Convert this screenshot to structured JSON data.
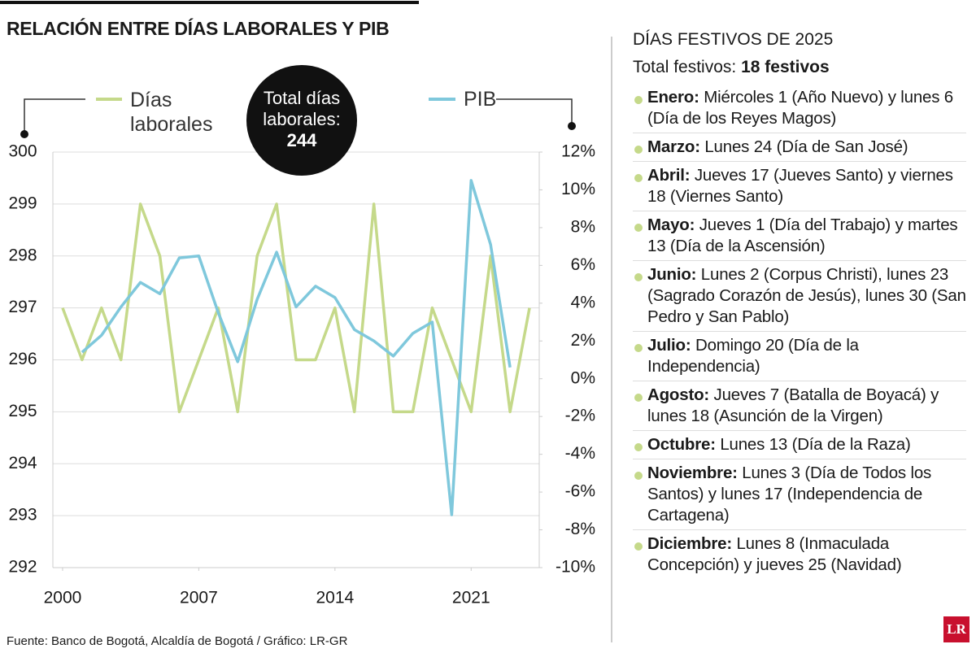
{
  "chart_data": {
    "type": "line",
    "title": "RELACIÓN ENTRE DÍAS LABORALES Y PIB",
    "annotation": {
      "label": "Total días laborales:",
      "value": "244"
    },
    "x": [
      2000,
      2001,
      2002,
      2003,
      2004,
      2005,
      2006,
      2007,
      2008,
      2009,
      2010,
      2011,
      2012,
      2013,
      2014,
      2015,
      2016,
      2017,
      2018,
      2019,
      2020,
      2021,
      2022,
      2023,
      2024
    ],
    "xlim": [
      1999.5,
      2024.5
    ],
    "xticks": [
      2000,
      2007,
      2014,
      2021
    ],
    "series": [
      {
        "name": "Días laborales",
        "color": "#c5d98a",
        "axis": "y",
        "values": [
          297,
          296,
          297,
          296,
          299,
          298,
          295,
          296,
          297,
          295,
          298,
          299,
          296,
          296,
          297,
          295,
          299,
          295,
          295,
          297,
          296,
          295,
          298,
          295,
          297
        ]
      },
      {
        "name": "PIB",
        "color": "#7fc8dc",
        "axis": "y2",
        "values": [
          null,
          1.4,
          2.3,
          3.8,
          5.1,
          4.5,
          6.4,
          6.5,
          3.5,
          0.9,
          4.2,
          6.7,
          3.8,
          4.9,
          4.3,
          2.6,
          2.0,
          1.2,
          2.4,
          3.0,
          -7.2,
          10.5,
          7.1,
          0.6,
          null
        ]
      }
    ],
    "ylim": [
      292,
      300
    ],
    "yticks": [
      292,
      293,
      294,
      295,
      296,
      297,
      298,
      299,
      300
    ],
    "y2lim": [
      -10,
      12
    ],
    "y2ticks": [
      {
        "value": -10,
        "label": "-10%"
      },
      {
        "value": -8,
        "label": "-8%"
      },
      {
        "value": -6,
        "label": "-6%"
      },
      {
        "value": -4,
        "label": "-4%"
      },
      {
        "value": -2,
        "label": "-2%"
      },
      {
        "value": 0,
        "label": "0%"
      },
      {
        "value": 2,
        "label": "2%"
      },
      {
        "value": 4,
        "label": "4%"
      },
      {
        "value": 6,
        "label": "6%"
      },
      {
        "value": 8,
        "label": "8%"
      },
      {
        "value": 10,
        "label": "10%"
      },
      {
        "value": 12,
        "label": "12%"
      }
    ],
    "grid": true,
    "source": "Fuente: Banco de Bogotá, Alcaldía de Bogotá / Gráfico: LR-GR"
  },
  "sidebar": {
    "title": "DÍAS FESTIVOS DE 2025",
    "total_label": "Total festivos:",
    "total_value": "18 festivos",
    "items": [
      {
        "month": "Enero:",
        "text": "Miércoles 1 (Año Nuevo) y lunes 6 (Día de los Reyes Magos)"
      },
      {
        "month": "Marzo:",
        "text": "Lunes 24 (Día de San José)"
      },
      {
        "month": "Abril:",
        "text": "Jueves 17 (Jueves Santo) y viernes 18 (Viernes Santo)"
      },
      {
        "month": "Mayo:",
        "text": "Jueves 1 (Día del Trabajo) y martes 13 (Día de la Ascensión)"
      },
      {
        "month": "Junio:",
        "text": "Lunes 2 (Corpus Christi), lunes 23 (Sagrado Corazón de Jesús), lunes 30 (San Pedro y San Pablo)"
      },
      {
        "month": "Julio:",
        "text": "Domingo 20 (Día de la Independencia)"
      },
      {
        "month": "Agosto:",
        "text": "Jueves 7 (Batalla de Boyacá) y lunes 18 (Asunción de la Virgen)"
      },
      {
        "month": "Octubre:",
        "text": "Lunes 13 (Día de la Raza)"
      },
      {
        "month": "Noviembre:",
        "text": "Lunes 3 (Día de Todos los Santos) y lunes 17 (Independencia de Cartagena)"
      },
      {
        "month": "Diciembre:",
        "text": "Lunes 8 (Inmaculada Concepción) y jueves 25 (Navidad)"
      }
    ]
  },
  "logo": "LR"
}
